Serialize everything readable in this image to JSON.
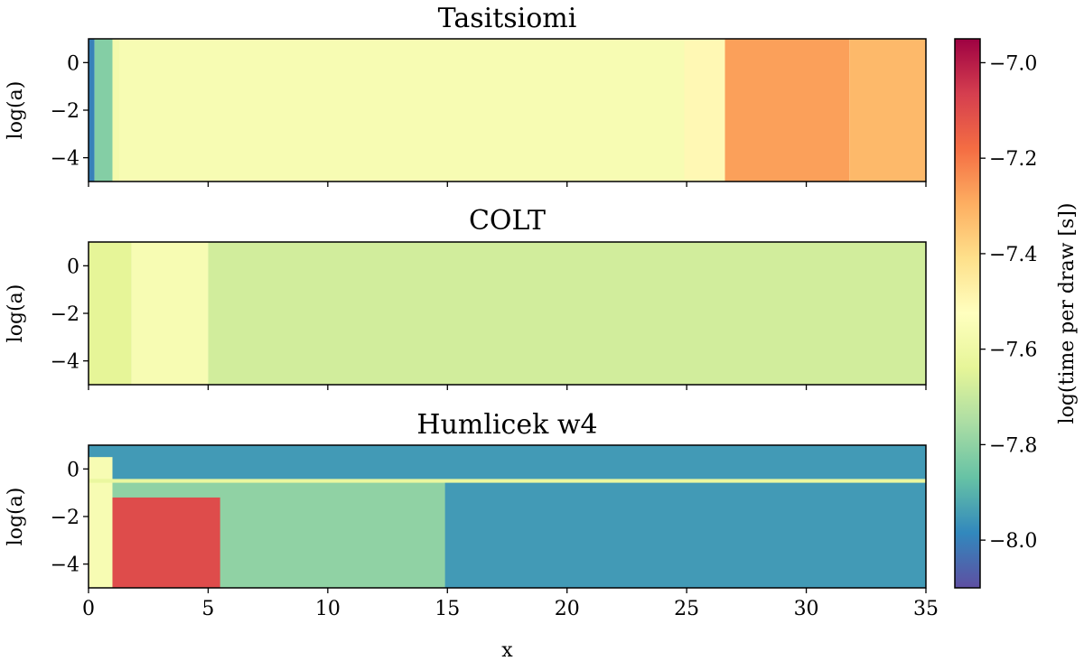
{
  "chart_data": {
    "type": "heatmap",
    "xlabel": "x",
    "x_range": [
      0,
      35
    ],
    "x_ticks": [
      0,
      5,
      10,
      15,
      20,
      25,
      30,
      35
    ],
    "y_range": [
      -5,
      1
    ],
    "y_ticks": [
      0,
      -2,
      -4
    ],
    "colorbar": {
      "label": "log(time per draw [s])",
      "range": [
        -8.1,
        -6.95
      ],
      "ticks": [
        -7.0,
        -7.2,
        -7.4,
        -7.6,
        -7.8,
        -8.0
      ],
      "colormap": "Spectral",
      "colors": [
        "#5e4fa2",
        "#3288bd",
        "#66c2a5",
        "#abdda4",
        "#e6f598",
        "#ffffbf",
        "#fee08b",
        "#fdae61",
        "#f46d43",
        "#d53e4f",
        "#9e0142"
      ]
    },
    "panels": [
      {
        "title": "Tasitsiomi",
        "ylabel": "log(a)",
        "regions": [
          {
            "x0": 0,
            "x1": 0.25,
            "y0": -5,
            "y1": 1,
            "value": -8.0
          },
          {
            "x0": 0.25,
            "x1": 1.0,
            "y0": -5,
            "y1": 1,
            "value": -7.82
          },
          {
            "x0": 1.0,
            "x1": 1.3,
            "y0": -5,
            "y1": 1,
            "value": -7.58
          },
          {
            "x0": 1.3,
            "x1": 24.9,
            "y0": -5,
            "y1": 1,
            "value": -7.56
          },
          {
            "x0": 24.9,
            "x1": 26.6,
            "y0": -5,
            "y1": 1,
            "value": -7.5
          },
          {
            "x0": 26.6,
            "x1": 31.8,
            "y0": -5,
            "y1": 1,
            "value": -7.27
          },
          {
            "x0": 31.8,
            "x1": 35,
            "y0": -5,
            "y1": 1,
            "value": -7.32
          }
        ]
      },
      {
        "title": "COLT",
        "ylabel": "log(a)",
        "regions": [
          {
            "x0": 0,
            "x1": 1.8,
            "y0": -5,
            "y1": 1,
            "value": -7.64
          },
          {
            "x0": 1.8,
            "x1": 5.0,
            "y0": -5,
            "y1": 1,
            "value": -7.56
          },
          {
            "x0": 5.0,
            "x1": 35,
            "y0": -5,
            "y1": 1,
            "value": -7.68
          }
        ]
      },
      {
        "title": "Humlicek w4",
        "ylabel": "log(a)",
        "regions": [
          {
            "x0": 0,
            "x1": 35,
            "y0": -5,
            "y1": 1,
            "value": -7.95
          },
          {
            "x0": 0,
            "x1": 14.9,
            "y0": -5,
            "y1": -0.5,
            "value": -7.8
          },
          {
            "x0": 0,
            "x1": 1.0,
            "y0": -5,
            "y1": 0.5,
            "value": -7.56
          },
          {
            "x0": 1.0,
            "x1": 5.5,
            "y0": -5,
            "y1": -1.2,
            "value": -7.1
          },
          {
            "x0": 0,
            "x1": 35,
            "y0": -0.58,
            "y1": -0.42,
            "value": -7.62
          }
        ]
      }
    ]
  }
}
